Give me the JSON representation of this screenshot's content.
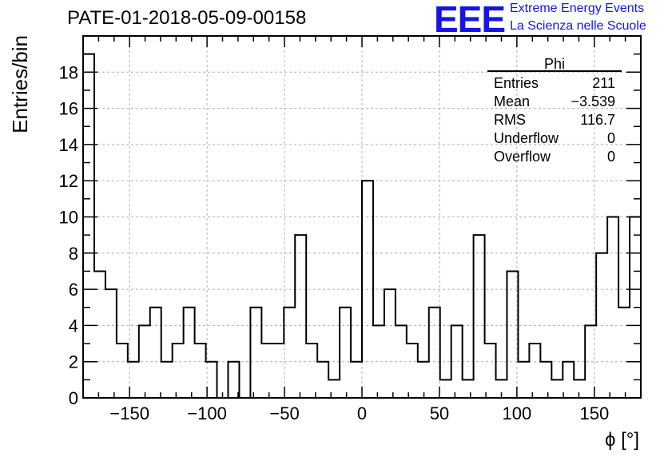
{
  "header": {
    "title": "PATE-01-2018-05-09-00158",
    "logo_text": "EEE",
    "logo_line1": "Extreme Energy Events",
    "logo_line2": "La Scienza nelle Scuole",
    "logo_color": "#1515e8"
  },
  "stats_box": {
    "title": "Phi",
    "rows": [
      {
        "label": "Entries",
        "value": "211"
      },
      {
        "label": "Mean",
        "value": "−3.539"
      },
      {
        "label": "RMS",
        "value": "116.7"
      },
      {
        "label": "Underflow",
        "value": "0"
      },
      {
        "label": "Overflow",
        "value": "0"
      }
    ]
  },
  "chart_data": {
    "type": "bar",
    "style": "step-histogram",
    "xlabel": "ϕ [°]",
    "ylabel": "Entries/bin",
    "xlim": [
      -180,
      180
    ],
    "ylim": [
      0,
      20
    ],
    "bin_width": 7.2,
    "xticks": [
      -150,
      -100,
      -50,
      0,
      50,
      100,
      150
    ],
    "xtick_labels": [
      "−150",
      "−100",
      "−50",
      "0",
      "50",
      "100",
      "150"
    ],
    "yticks": [
      0,
      2,
      4,
      6,
      8,
      10,
      12,
      14,
      16,
      18
    ],
    "ytick_labels": [
      "0",
      "2",
      "4",
      "6",
      "8",
      "10",
      "12",
      "14",
      "16",
      "18"
    ],
    "grid": true,
    "values": [
      19,
      7,
      6,
      3,
      2,
      4,
      5,
      2,
      3,
      5,
      3,
      2,
      0,
      2,
      0,
      5,
      3,
      3,
      5,
      9,
      3,
      2,
      1,
      5,
      2,
      12,
      4,
      6,
      4,
      3,
      2,
      5,
      1,
      4,
      1,
      9,
      3,
      1,
      7,
      2,
      3,
      2,
      1,
      2,
      1,
      4,
      8,
      10,
      5,
      10
    ]
  }
}
